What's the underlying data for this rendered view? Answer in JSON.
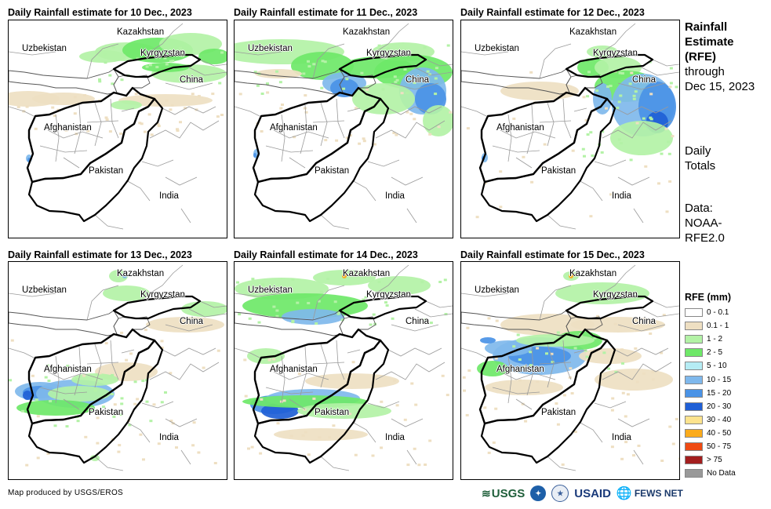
{
  "panels": [
    {
      "title": "Daily Rainfall estimate for 10 Dec., 2023",
      "day": "d10"
    },
    {
      "title": "Daily Rainfall estimate for 11 Dec., 2023",
      "day": "d11"
    },
    {
      "title": "Daily Rainfall estimate for 12 Dec., 2023",
      "day": "d12"
    },
    {
      "title": "Daily Rainfall estimate for 13 Dec., 2023",
      "day": "d13"
    },
    {
      "title": "Daily Rainfall estimate for 14 Dec., 2023",
      "day": "d14"
    },
    {
      "title": "Daily Rainfall estimate for 15 Dec., 2023",
      "day": "d15"
    }
  ],
  "country_labels": [
    "Kazakhstan",
    "Uzbekistan",
    "Kyrgyzstan",
    "China",
    "Afghanistan",
    "Pakistan",
    "India"
  ],
  "sidebar": {
    "title_lines": [
      "Rainfall",
      "Estimate",
      "(RFE)"
    ],
    "through_lines": [
      "through",
      "Dec 15, 2023"
    ],
    "daily_lines": [
      "Daily",
      "Totals"
    ],
    "data_lines": [
      "Data:",
      "NOAA-",
      "RFE2.0"
    ]
  },
  "legend": {
    "title": "RFE (mm)",
    "items": [
      {
        "label": "0 - 0.1",
        "color": "#ffffff"
      },
      {
        "label": "0.1 - 1",
        "color": "#eedfc2"
      },
      {
        "label": "1 - 2",
        "color": "#b3f2a6"
      },
      {
        "label": "2 - 5",
        "color": "#6ee868"
      },
      {
        "label": "5 - 10",
        "color": "#b5ecf4"
      },
      {
        "label": "10 - 15",
        "color": "#7fb8ec"
      },
      {
        "label": "15 - 20",
        "color": "#4a93e6"
      },
      {
        "label": "20 - 30",
        "color": "#1f5fd6"
      },
      {
        "label": "30 - 40",
        "color": "#fde38e"
      },
      {
        "label": "40 - 50",
        "color": "#fbab1c"
      },
      {
        "label": "50 - 75",
        "color": "#ef4a12"
      },
      {
        "label": "> 75",
        "color": "#a31e1e"
      },
      {
        "label": "No Data",
        "color": "#999999"
      }
    ]
  },
  "credit": "Map produced by USGS/EROS",
  "logos": {
    "usgs": "USGS",
    "noaa": "NOAA",
    "usaid": "USAID",
    "fews": "FEWS NET"
  }
}
